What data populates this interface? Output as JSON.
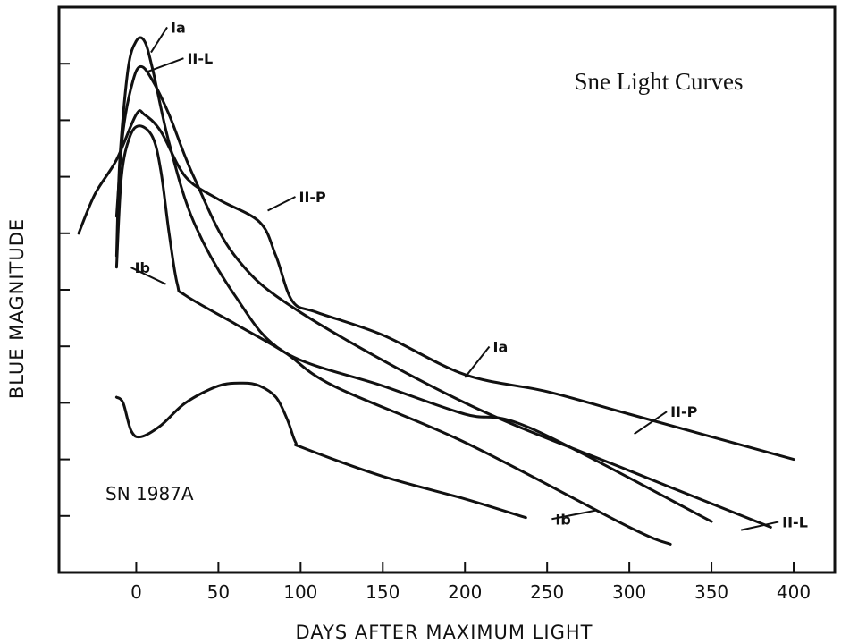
{
  "chart_data": {
    "type": "line",
    "title": "Sne Light Curves",
    "xlabel": "DAYS AFTER MAXIMUM LIGHT",
    "ylabel": "BLUE MAGNITUDE",
    "xlim": [
      -47,
      425
    ],
    "ylim": [
      0,
      10
    ],
    "x_ticks": [
      0,
      50,
      100,
      150,
      200,
      250,
      300,
      350,
      400
    ],
    "y_ticks": [
      1,
      2,
      3,
      4,
      5,
      6,
      7,
      8,
      9
    ],
    "y_tick_labels_shown": false,
    "grid": false,
    "annotation": "SN 1987A",
    "series": [
      {
        "name": "Ia",
        "points": [
          [
            -12,
            5.6
          ],
          [
            -10,
            7.3
          ],
          [
            -5,
            8.9
          ],
          [
            0,
            9.4
          ],
          [
            5,
            9.4
          ],
          [
            10,
            8.9
          ],
          [
            20,
            7.6
          ],
          [
            35,
            6.2
          ],
          [
            60,
            4.9
          ],
          [
            90,
            3.9
          ],
          [
            150,
            3.3
          ],
          [
            200,
            2.8
          ],
          [
            240,
            2.55
          ],
          [
            350,
            0.9
          ]
        ]
      },
      {
        "name": "II-L",
        "points": [
          [
            -12,
            6.3
          ],
          [
            -8,
            7.8
          ],
          [
            -2,
            8.7
          ],
          [
            3,
            8.95
          ],
          [
            10,
            8.7
          ],
          [
            20,
            8.1
          ],
          [
            35,
            7.0
          ],
          [
            60,
            5.6
          ],
          [
            100,
            4.6
          ],
          [
            200,
            3.0
          ],
          [
            300,
            1.8
          ],
          [
            386,
            0.8
          ]
        ]
      },
      {
        "name": "II-P",
        "points": [
          [
            -35,
            6.0
          ],
          [
            -25,
            6.7
          ],
          [
            -12,
            7.3
          ],
          [
            0,
            8.1
          ],
          [
            5,
            8.1
          ],
          [
            15,
            7.8
          ],
          [
            30,
            7.0
          ],
          [
            50,
            6.6
          ],
          [
            75,
            6.2
          ],
          [
            85,
            5.6
          ],
          [
            95,
            4.8
          ],
          [
            110,
            4.6
          ],
          [
            150,
            4.2
          ],
          [
            200,
            3.5
          ],
          [
            250,
            3.2
          ],
          [
            300,
            2.8
          ],
          [
            400,
            2.0
          ]
        ]
      },
      {
        "name": "Ib",
        "points": [
          [
            -12,
            5.4
          ],
          [
            -9,
            7.0
          ],
          [
            -4,
            7.7
          ],
          [
            2,
            7.9
          ],
          [
            10,
            7.7
          ],
          [
            15,
            7.1
          ],
          [
            20,
            6.0
          ],
          [
            25,
            5.1
          ],
          [
            30,
            4.9
          ],
          [
            60,
            4.4
          ],
          [
            90,
            3.9
          ],
          [
            120,
            3.3
          ],
          [
            200,
            2.3
          ],
          [
            300,
            0.8
          ],
          [
            325,
            0.5
          ]
        ]
      },
      {
        "name": "SN 1987A",
        "points": [
          [
            -12,
            3.1
          ],
          [
            -8,
            3.0
          ],
          [
            -3,
            2.5
          ],
          [
            3,
            2.4
          ],
          [
            15,
            2.6
          ],
          [
            30,
            3.0
          ],
          [
            50,
            3.3
          ],
          [
            65,
            3.35
          ],
          [
            75,
            3.3
          ],
          [
            85,
            3.1
          ],
          [
            92,
            2.7
          ],
          [
            97,
            2.3
          ],
          [
            102,
            2.2
          ],
          [
            150,
            1.7
          ],
          [
            200,
            1.3
          ],
          [
            237,
            0.97
          ]
        ]
      }
    ],
    "labels": [
      {
        "text": "Ia",
        "x": 21,
        "y": 9.55
      },
      {
        "text": "II-L",
        "x": 31,
        "y": 9.0
      },
      {
        "text": "II-P",
        "x": 99,
        "y": 6.55
      },
      {
        "text": "Ib",
        "x": -1,
        "y": 5.3
      },
      {
        "text": "Ia",
        "x": 217,
        "y": 3.9
      },
      {
        "text": "II-P",
        "x": 325,
        "y": 2.75
      },
      {
        "text": "Ib",
        "x": 255,
        "y": 0.85
      },
      {
        "text": "II-L",
        "x": 393,
        "y": 0.8
      }
    ]
  }
}
